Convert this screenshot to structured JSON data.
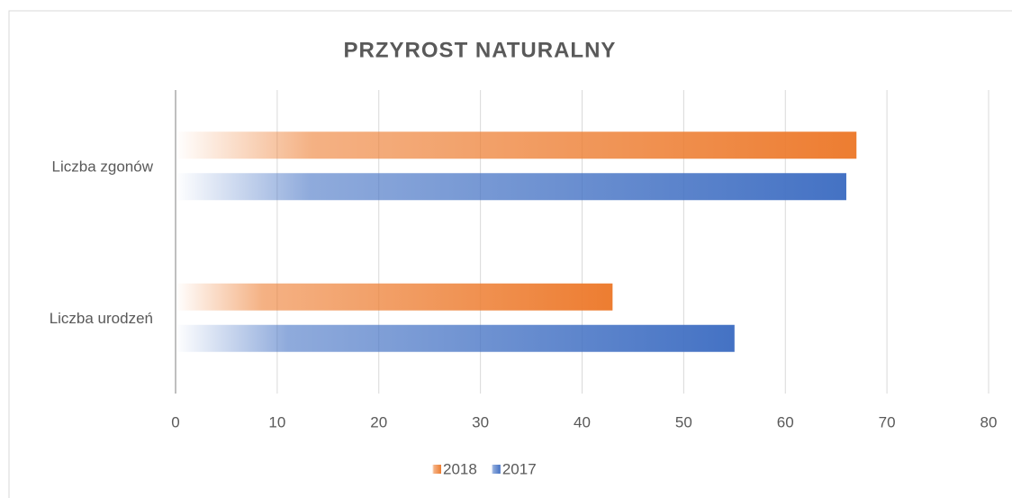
{
  "chart_data": {
    "type": "hbar",
    "title": "PRZYROST NATURALNY",
    "categories": [
      "Liczba zgonów",
      "Liczba urodzeń"
    ],
    "series": [
      {
        "name": "2018",
        "color": "#ed7d31",
        "values": [
          67,
          43
        ]
      },
      {
        "name": "2017",
        "color": "#4472c4",
        "values": [
          66,
          55
        ]
      }
    ],
    "xlim": [
      0,
      80
    ],
    "xticks": [
      0,
      10,
      20,
      30,
      40,
      50,
      60,
      70,
      80
    ],
    "grid": true,
    "legend": "bottom"
  }
}
